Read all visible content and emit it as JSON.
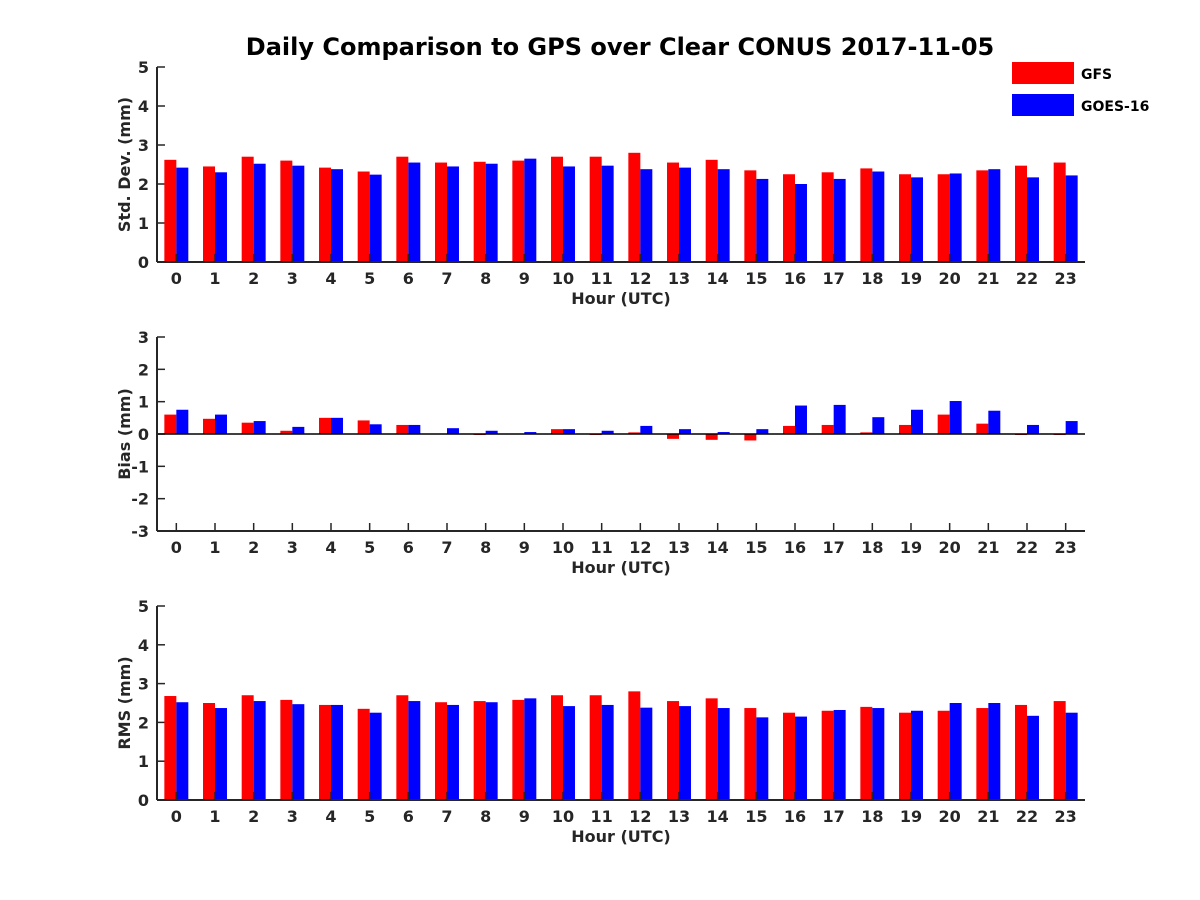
{
  "title": "Daily Comparison to GPS over Clear CONUS 2017-11-05",
  "legend": [
    {
      "name": "GFS",
      "color": "#ff0000"
    },
    {
      "name": "GOES-16",
      "color": "#0000ff"
    }
  ],
  "chart_data": [
    {
      "type": "bar",
      "xlabel": "Hour (UTC)",
      "ylabel": "Std. Dev. (mm)",
      "ylim": [
        0,
        5
      ],
      "yticks": [
        "0",
        "1",
        "2",
        "3",
        "4",
        "5"
      ],
      "categories": [
        "0",
        "1",
        "2",
        "3",
        "4",
        "5",
        "6",
        "7",
        "8",
        "9",
        "10",
        "11",
        "12",
        "13",
        "14",
        "15",
        "16",
        "17",
        "18",
        "19",
        "20",
        "21",
        "22",
        "23"
      ],
      "series": [
        {
          "name": "GFS",
          "color": "#ff0000",
          "values": [
            2.62,
            2.45,
            2.7,
            2.6,
            2.42,
            2.32,
            2.7,
            2.55,
            2.57,
            2.6,
            2.7,
            2.7,
            2.8,
            2.55,
            2.62,
            2.35,
            2.25,
            2.3,
            2.4,
            2.25,
            2.25,
            2.35,
            2.47,
            2.55
          ]
        },
        {
          "name": "GOES-16",
          "color": "#0000ff",
          "values": [
            2.42,
            2.3,
            2.52,
            2.47,
            2.38,
            2.24,
            2.55,
            2.45,
            2.52,
            2.65,
            2.45,
            2.47,
            2.38,
            2.42,
            2.38,
            2.13,
            2.0,
            2.13,
            2.32,
            2.17,
            2.27,
            2.38,
            2.17,
            2.22
          ]
        }
      ]
    },
    {
      "type": "bar",
      "xlabel": "Hour (UTC)",
      "ylabel": "Bias (mm)",
      "ylim": [
        -3,
        3
      ],
      "yticks": [
        "-3",
        "-2",
        "-1",
        "0",
        "1",
        "2",
        "3"
      ],
      "categories": [
        "0",
        "1",
        "2",
        "3",
        "4",
        "5",
        "6",
        "7",
        "8",
        "9",
        "10",
        "11",
        "12",
        "13",
        "14",
        "15",
        "16",
        "17",
        "18",
        "19",
        "20",
        "21",
        "22",
        "23"
      ],
      "series": [
        {
          "name": "GFS",
          "color": "#ff0000",
          "values": [
            0.6,
            0.47,
            0.35,
            0.1,
            0.5,
            0.42,
            0.28,
            0.0,
            -0.03,
            0.0,
            0.15,
            -0.03,
            0.05,
            -0.15,
            -0.18,
            -0.2,
            0.25,
            0.28,
            0.05,
            0.28,
            0.6,
            0.32,
            -0.03,
            -0.03
          ]
        },
        {
          "name": "GOES-16",
          "color": "#0000ff",
          "values": [
            0.75,
            0.6,
            0.4,
            0.22,
            0.5,
            0.3,
            0.28,
            0.18,
            0.1,
            0.06,
            0.15,
            0.1,
            0.25,
            0.15,
            0.06,
            0.15,
            0.88,
            0.9,
            0.52,
            0.75,
            1.02,
            0.72,
            0.28,
            0.4
          ]
        }
      ]
    },
    {
      "type": "bar",
      "xlabel": "Hour (UTC)",
      "ylabel": "RMS (mm)",
      "ylim": [
        0,
        5
      ],
      "yticks": [
        "0",
        "1",
        "2",
        "3",
        "4",
        "5"
      ],
      "categories": [
        "0",
        "1",
        "2",
        "3",
        "4",
        "5",
        "6",
        "7",
        "8",
        "9",
        "10",
        "11",
        "12",
        "13",
        "14",
        "15",
        "16",
        "17",
        "18",
        "19",
        "20",
        "21",
        "22",
        "23"
      ],
      "series": [
        {
          "name": "GFS",
          "color": "#ff0000",
          "values": [
            2.68,
            2.5,
            2.7,
            2.58,
            2.45,
            2.35,
            2.7,
            2.52,
            2.55,
            2.58,
            2.7,
            2.7,
            2.8,
            2.55,
            2.62,
            2.37,
            2.25,
            2.3,
            2.4,
            2.25,
            2.3,
            2.37,
            2.45,
            2.55
          ]
        },
        {
          "name": "GOES-16",
          "color": "#0000ff",
          "values": [
            2.52,
            2.37,
            2.55,
            2.47,
            2.45,
            2.25,
            2.55,
            2.45,
            2.52,
            2.62,
            2.42,
            2.45,
            2.38,
            2.42,
            2.37,
            2.13,
            2.15,
            2.32,
            2.37,
            2.3,
            2.5,
            2.5,
            2.17,
            2.25
          ]
        }
      ]
    }
  ]
}
